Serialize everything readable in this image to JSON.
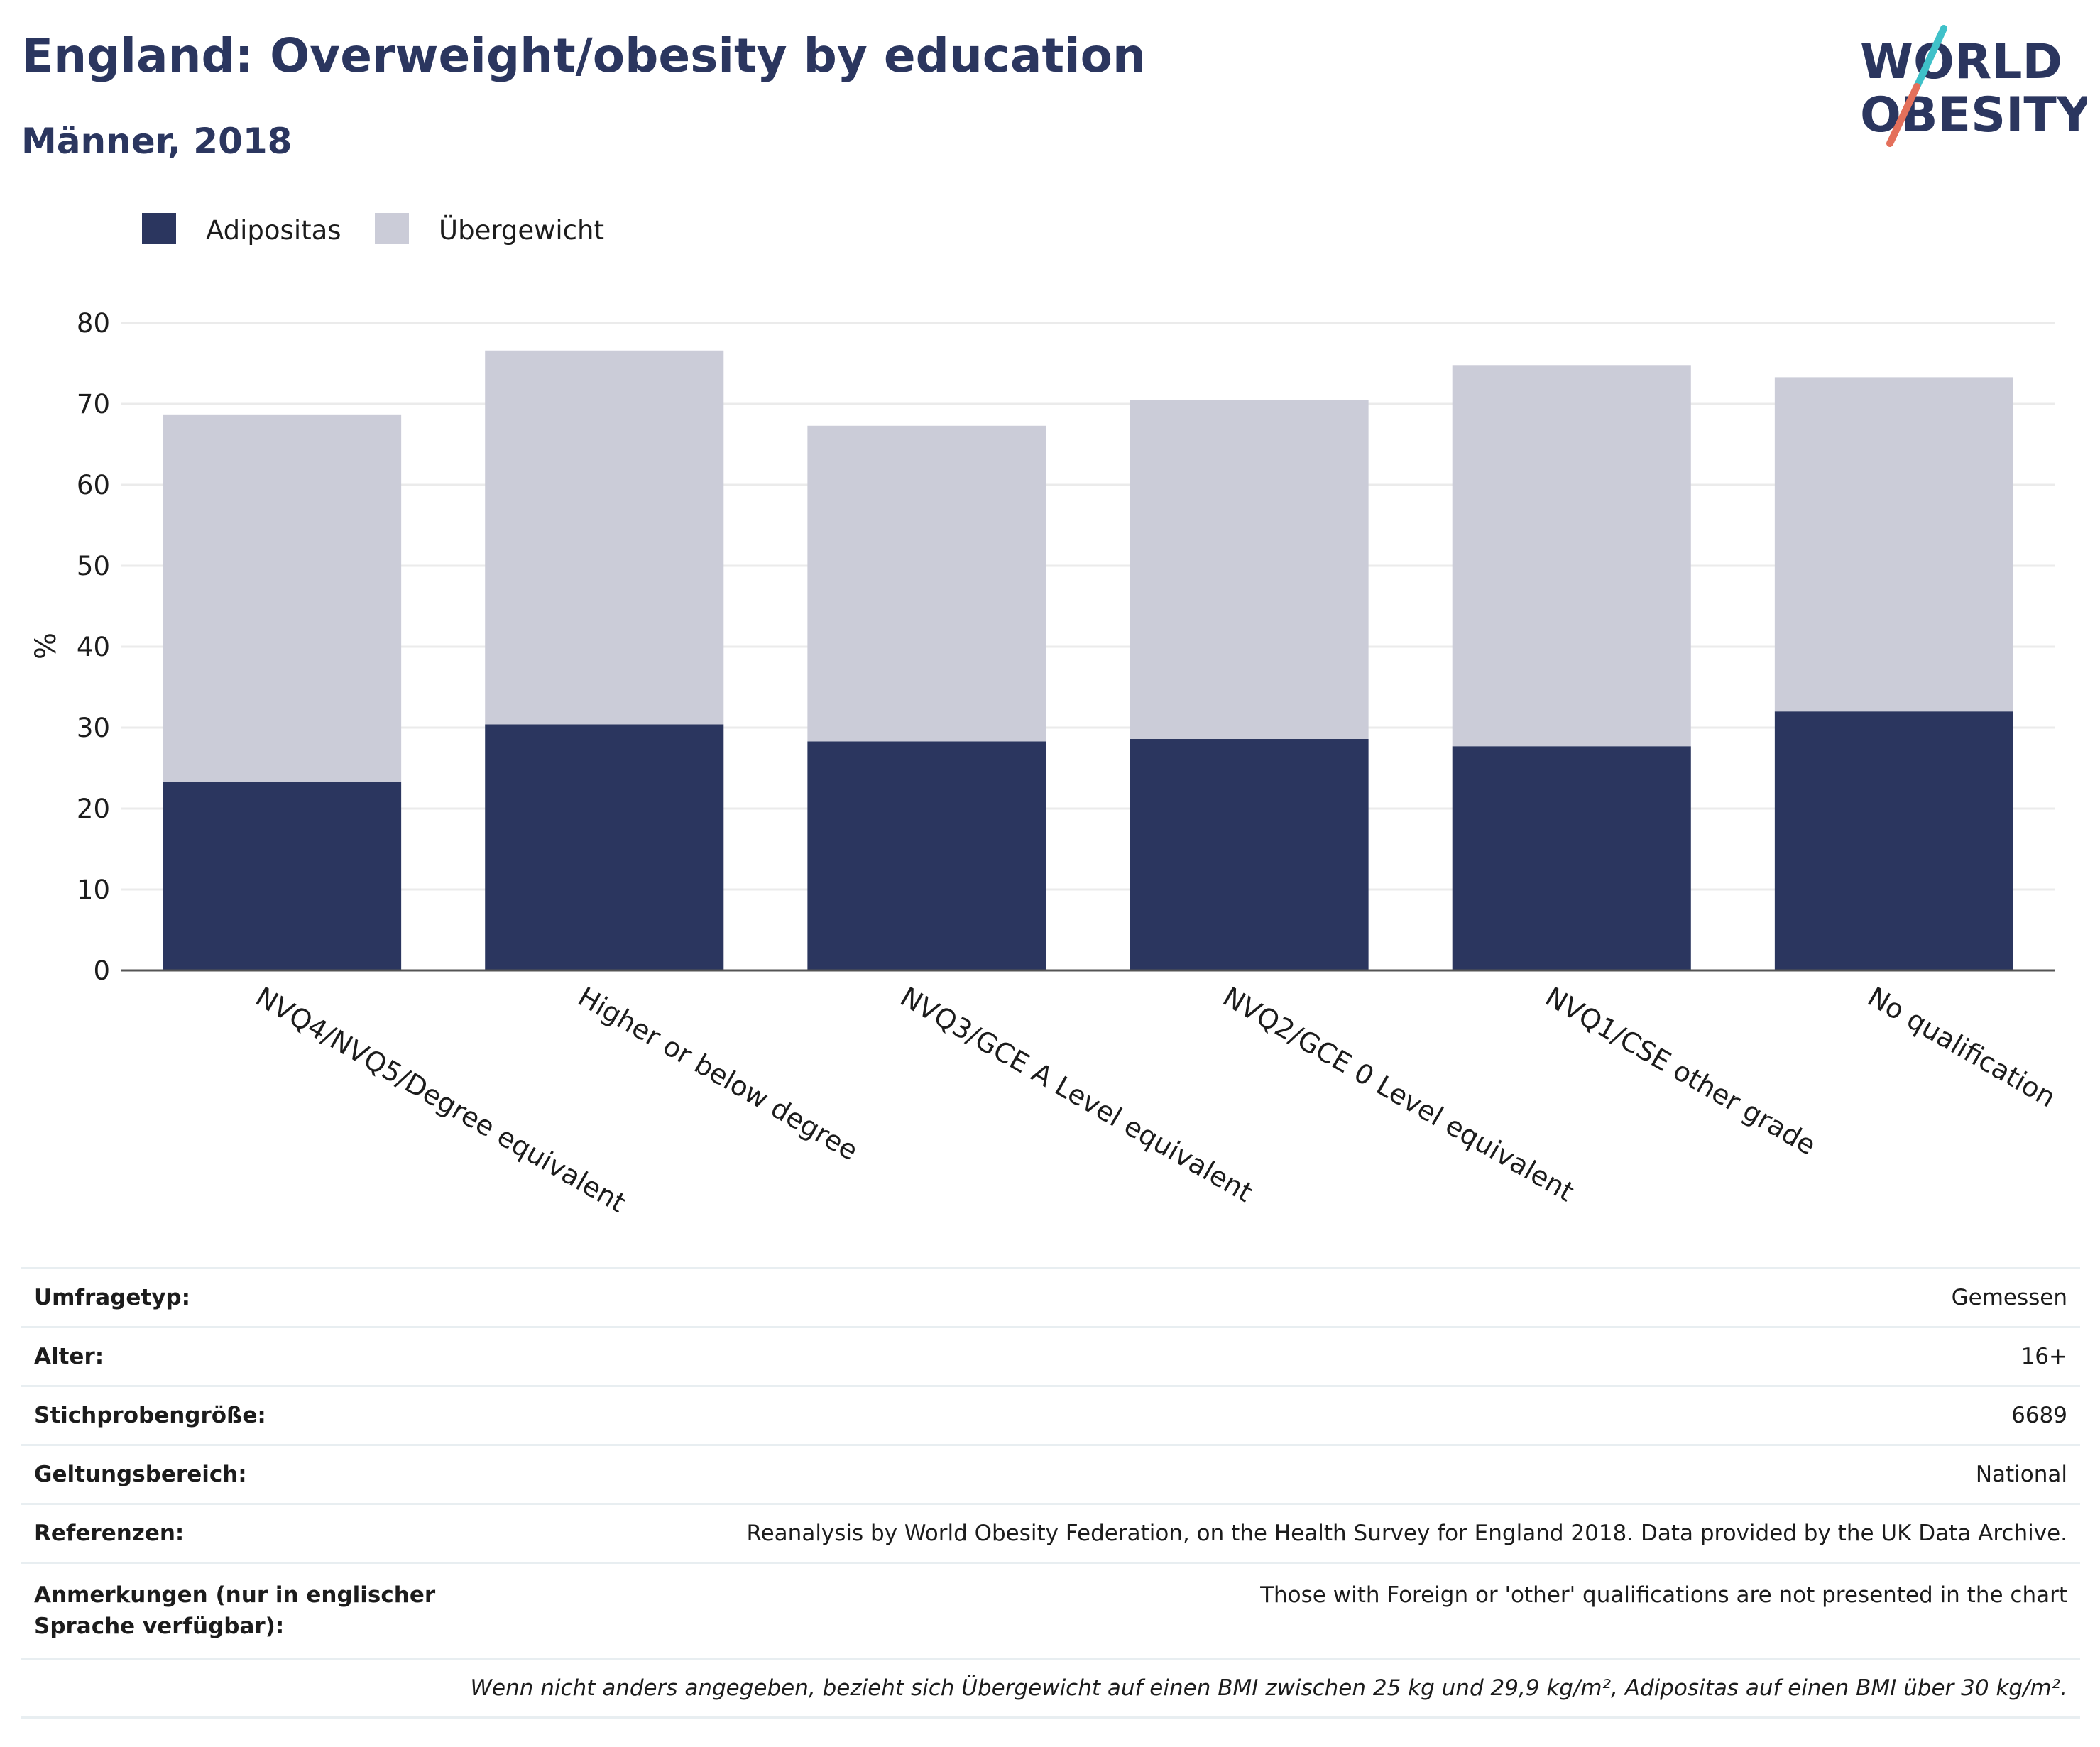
{
  "header": {
    "title": "England: Overweight/obesity by education",
    "subtitle": "Männer, 2018"
  },
  "logo": {
    "line1": "WORLD",
    "line2": "OBESITY",
    "colors": {
      "text": "#2b365f",
      "slash_top": "#3fc1c9",
      "slash_bottom": "#e4705b"
    }
  },
  "colors": {
    "adipositas": "#2b365f",
    "uebergewicht": "#cbccd8",
    "grid": "#ebebeb",
    "axis": "#555555",
    "text": "#1c1c1c"
  },
  "chart_data": {
    "type": "bar",
    "stacked": true,
    "ylabel": "%",
    "xlabel": "",
    "ylim": [
      0,
      80
    ],
    "yticks": [
      0,
      10,
      20,
      30,
      40,
      50,
      60,
      70,
      80
    ],
    "grid": true,
    "legend_position": "top-left",
    "categories": [
      "NVQ4/NVQ5/Degree equivalent",
      "Higher or below degree",
      "NVQ3/GCE A Level equivalent",
      "NVQ2/GCE 0 Level equivalent",
      "NVQ1/CSE other grade",
      "No qualification"
    ],
    "series": [
      {
        "name": "Adipositas",
        "values": [
          23.3,
          30.4,
          28.3,
          28.6,
          27.7,
          32.0
        ]
      },
      {
        "name": "Übergewicht",
        "values": [
          45.4,
          46.2,
          39.0,
          41.9,
          47.1,
          41.3
        ]
      }
    ]
  },
  "info": {
    "rows": [
      {
        "key": "Umfragetyp:",
        "value": "Gemessen"
      },
      {
        "key": "Alter:",
        "value": "16+"
      },
      {
        "key": "Stichprobengröße:",
        "value": "6689"
      },
      {
        "key": "Geltungsbereich:",
        "value": "National"
      },
      {
        "key": "Referenzen:",
        "value": "Reanalysis by World Obesity Federation, on the Health Survey for England 2018. Data provided by the UK Data Archive."
      },
      {
        "key": "Anmerkungen (nur in englischer Sprache verfügbar):",
        "value": "Those with Foreign or 'other' qualifications are not presented in the chart"
      }
    ],
    "footnote": "Wenn nicht anders angegeben, bezieht sich Übergewicht auf einen BMI zwischen 25 kg und 29,9 kg/m², Adipositas auf einen BMI über 30 kg/m²."
  }
}
